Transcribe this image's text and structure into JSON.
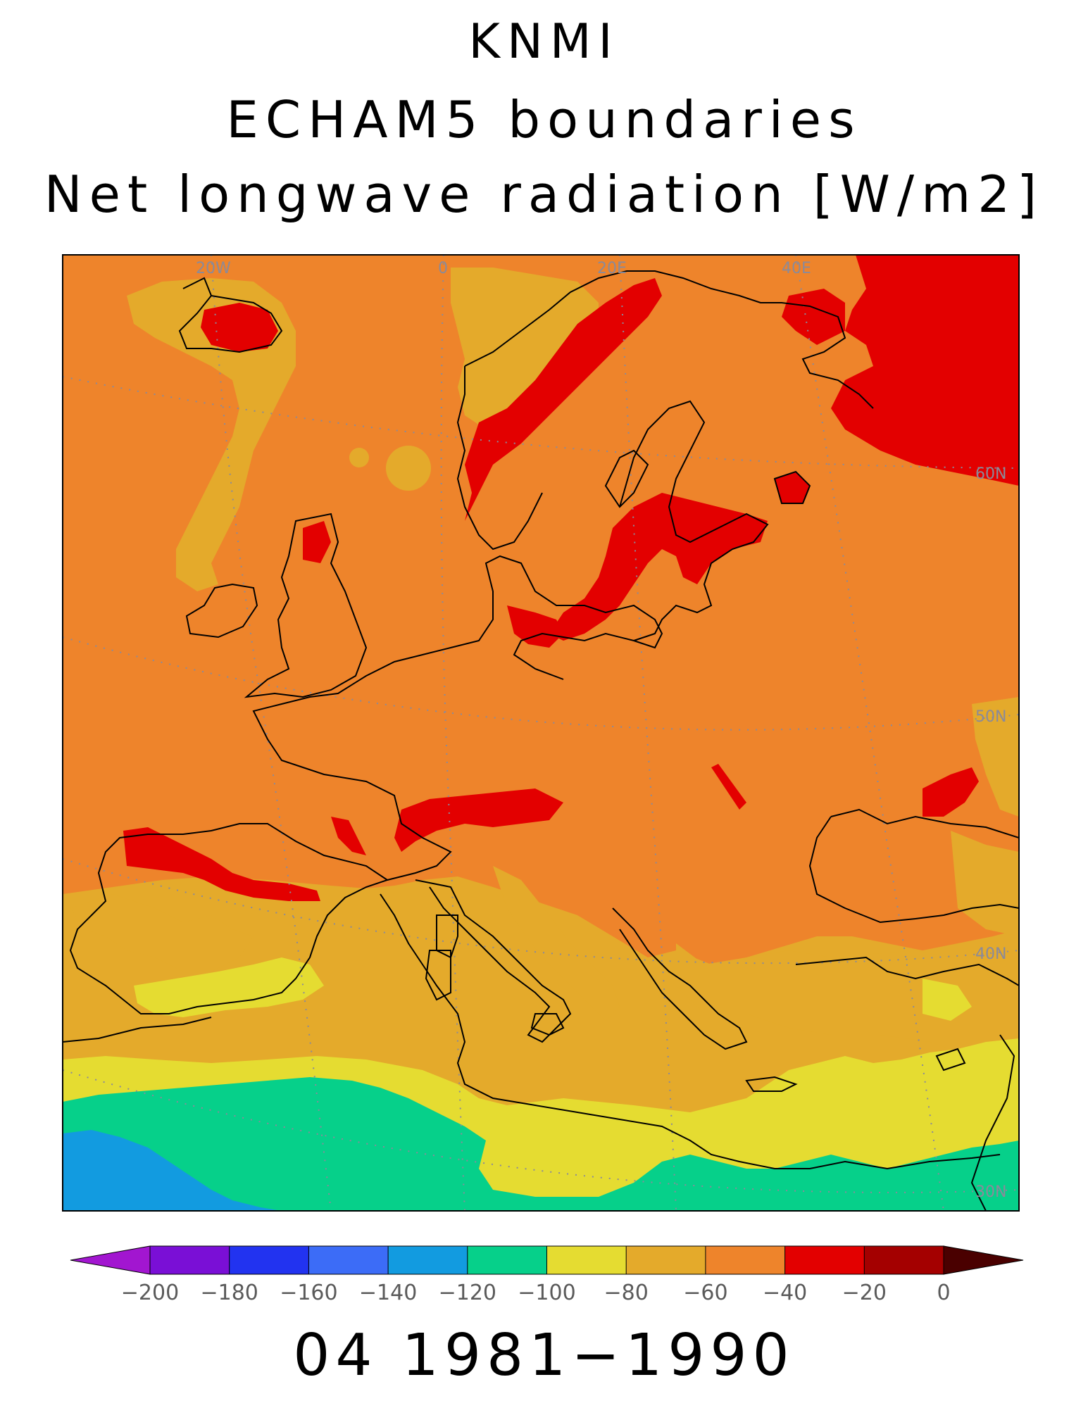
{
  "title": {
    "line1": "KNMI",
    "line2": "ECHAM5 boundaries",
    "line3": "Net longwave radiation [W/m2]"
  },
  "period": "04 1981−1990",
  "map": {
    "meridian_labels": [
      "20W",
      "0",
      "20E",
      "40E"
    ],
    "parallel_labels": [
      "60N",
      "50N",
      "40N",
      "30N"
    ],
    "background_class": "-60 to -40 W/m2 (orange)",
    "colors": {
      "below_-200": "#a216d0",
      "-200_-180": "#7a0fd6",
      "-180_-160": "#2233f0",
      "-160_-140": "#3c6cf7",
      "-140_-120": "#129be0",
      "-120_-100": "#06d08a",
      "-100_-80": "#e5dc31",
      "-80_-60": "#e4aa2b",
      "-60_-40": "#ee842b",
      "-40_-20": "#e30000",
      "-20_0": "#a40000",
      "above_0": "#4a0000"
    }
  },
  "colorbar": {
    "tick_labels": [
      "−200",
      "−180",
      "−160",
      "−140",
      "−120",
      "−100",
      "−80",
      "−60",
      "−40",
      "−20",
      "0"
    ],
    "ticks": [
      -200,
      -180,
      -160,
      -140,
      -120,
      -100,
      -80,
      -60,
      -40,
      -20,
      0
    ],
    "band_colors": [
      "#7a0fd6",
      "#2233f0",
      "#3c6cf7",
      "#129be0",
      "#06d08a",
      "#e5dc31",
      "#e4aa2b",
      "#ee842b",
      "#e30000",
      "#a40000"
    ],
    "under_color": "#a216d0",
    "over_color": "#4a0000"
  }
}
